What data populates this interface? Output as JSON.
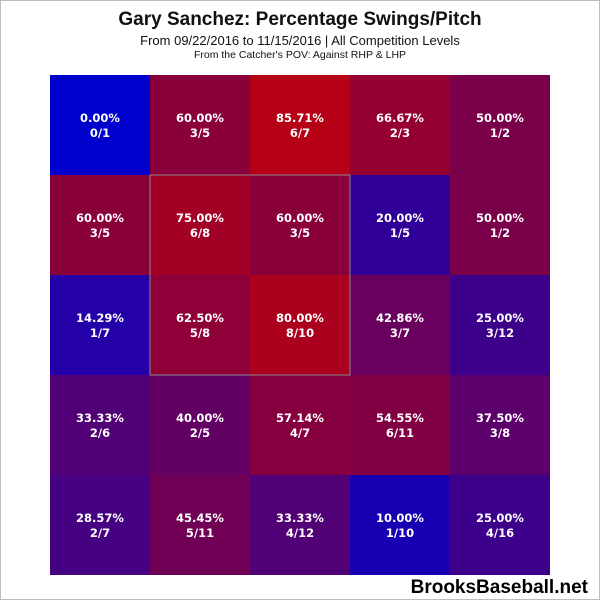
{
  "header": {
    "title": "Gary Sanchez: Percentage Swings/Pitch",
    "subtitle": "From 09/22/2016 to 11/15/2016 | All Competition Levels",
    "subtitle2": "From the Catcher's POV:  Against RHP & LHP"
  },
  "footer": {
    "brand": "BrooksBaseball.net"
  },
  "chart_data": {
    "type": "heatmap",
    "title": "Gary Sanchez: Percentage Swings/Pitch",
    "rows": 5,
    "cols": 5,
    "strike_zone": {
      "rows": [
        1,
        3
      ],
      "cols": [
        1,
        3
      ]
    },
    "color_scale": {
      "low": "#0000cc",
      "mid": "#7a004a",
      "high": "#cc0000"
    },
    "cells": [
      [
        {
          "pct": "0.00%",
          "value": 0.0,
          "count": "0/1"
        },
        {
          "pct": "60.00%",
          "value": 60.0,
          "count": "3/5"
        },
        {
          "pct": "85.71%",
          "value": 85.71,
          "count": "6/7"
        },
        {
          "pct": "66.67%",
          "value": 66.67,
          "count": "2/3"
        },
        {
          "pct": "50.00%",
          "value": 50.0,
          "count": "1/2"
        }
      ],
      [
        {
          "pct": "60.00%",
          "value": 60.0,
          "count": "3/5"
        },
        {
          "pct": "75.00%",
          "value": 75.0,
          "count": "6/8"
        },
        {
          "pct": "60.00%",
          "value": 60.0,
          "count": "3/5"
        },
        {
          "pct": "20.00%",
          "value": 20.0,
          "count": "1/5"
        },
        {
          "pct": "50.00%",
          "value": 50.0,
          "count": "1/2"
        }
      ],
      [
        {
          "pct": "14.29%",
          "value": 14.29,
          "count": "1/7"
        },
        {
          "pct": "62.50%",
          "value": 62.5,
          "count": "5/8"
        },
        {
          "pct": "80.00%",
          "value": 80.0,
          "count": "8/10"
        },
        {
          "pct": "42.86%",
          "value": 42.86,
          "count": "3/7"
        },
        {
          "pct": "25.00%",
          "value": 25.0,
          "count": "3/12"
        }
      ],
      [
        {
          "pct": "33.33%",
          "value": 33.33,
          "count": "2/6"
        },
        {
          "pct": "40.00%",
          "value": 40.0,
          "count": "2/5"
        },
        {
          "pct": "57.14%",
          "value": 57.14,
          "count": "4/7"
        },
        {
          "pct": "54.55%",
          "value": 54.55,
          "count": "6/11"
        },
        {
          "pct": "37.50%",
          "value": 37.5,
          "count": "3/8"
        }
      ],
      [
        {
          "pct": "28.57%",
          "value": 28.57,
          "count": "2/7"
        },
        {
          "pct": "45.45%",
          "value": 45.45,
          "count": "5/11"
        },
        {
          "pct": "33.33%",
          "value": 33.33,
          "count": "4/12"
        },
        {
          "pct": "10.00%",
          "value": 10.0,
          "count": "1/10"
        },
        {
          "pct": "25.00%",
          "value": 25.0,
          "count": "4/16"
        }
      ]
    ]
  }
}
